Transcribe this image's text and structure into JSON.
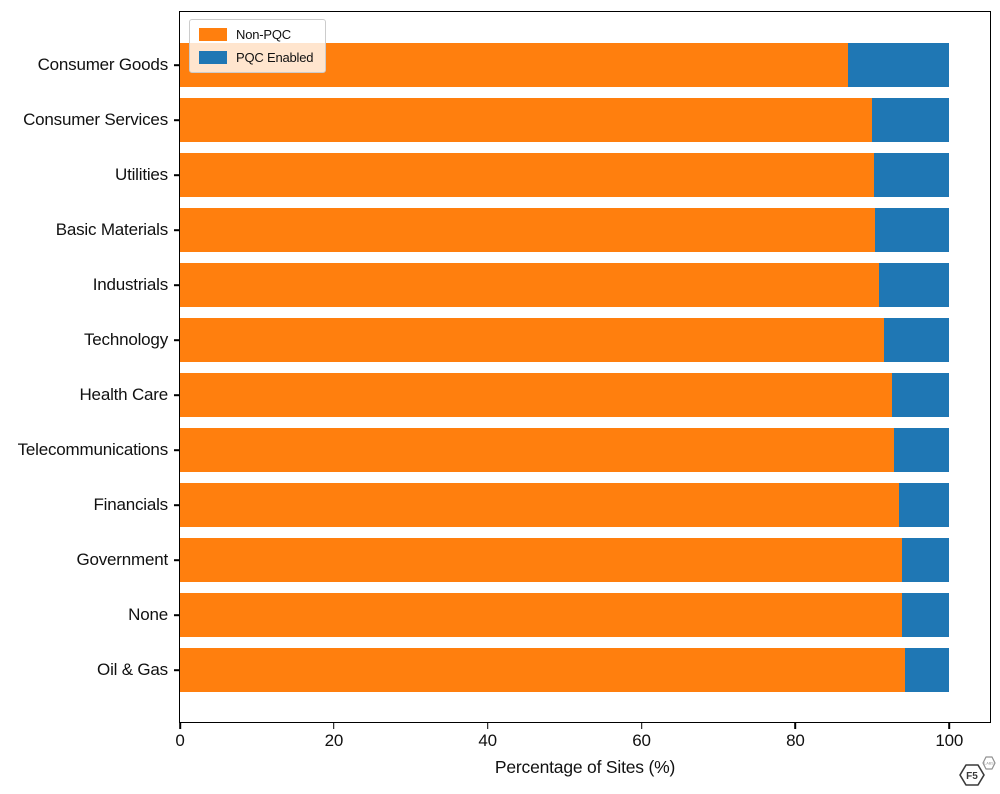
{
  "chart_data": {
    "type": "bar",
    "orientation": "horizontal",
    "stacked": true,
    "title": "",
    "xlabel": "Percentage of Sites (%)",
    "ylabel": "",
    "categories": [
      "Consumer Goods",
      "Consumer Services",
      "Utilities",
      "Basic Materials",
      "Industrials",
      "Technology",
      "Health Care",
      "Telecommunications",
      "Financials",
      "Government",
      "None",
      "Oil & Gas"
    ],
    "series": [
      {
        "name": "Non-PQC",
        "color": "#ff7f0e",
        "values": [
          86.9,
          90.0,
          90.2,
          90.4,
          90.9,
          91.5,
          92.5,
          92.8,
          93.5,
          93.9,
          93.9,
          94.2
        ]
      },
      {
        "name": "PQC Enabled",
        "color": "#1f77b4",
        "values": [
          13.1,
          10.0,
          9.8,
          9.6,
          9.1,
          8.5,
          7.5,
          7.2,
          6.5,
          6.1,
          6.1,
          5.8
        ]
      }
    ],
    "x_ticks": [
      0,
      20,
      40,
      60,
      80,
      100
    ],
    "xlim": [
      0,
      105.3
    ],
    "grid": false,
    "legend_position": "upper-left",
    "colors": {
      "axis": "#000000",
      "text": "#111111",
      "legend_border": "#cccccc"
    }
  },
  "watermark": {
    "logo_text": "F5",
    "badge_text": "LABS"
  }
}
